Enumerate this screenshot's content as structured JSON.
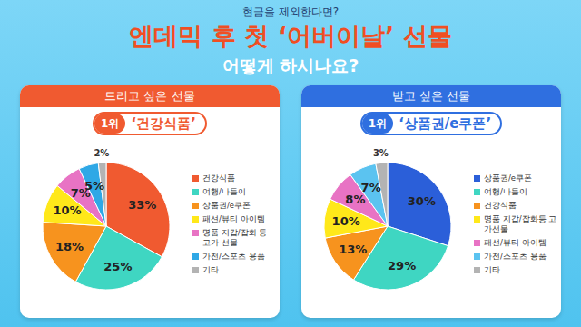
{
  "header": {
    "kicker": "현금을 제외한다면?",
    "title": "엔데믹 후 첫 ‘어버이날’ 선물",
    "subtitle": "어떻게 하시나요?"
  },
  "chart_data": [
    {
      "type": "pie",
      "title": "드리고 싶은 선물",
      "badge": [
        "1위",
        "‘건강식품’"
      ],
      "categories": [
        "건강식품",
        "여행/나들이",
        "상품권/e쿠폰",
        "패션/뷰티 아이템",
        "명품 지갑/잡화 등 고가 선물",
        "가전/스포츠 용품",
        "기타"
      ],
      "values": [
        33,
        25,
        18,
        10,
        7,
        5,
        2
      ],
      "value_labels": [
        "33%",
        "25%",
        "18%",
        "10%",
        "7%",
        "5%",
        "2%"
      ],
      "colors": [
        "#f05a30",
        "#3fd6c2",
        "#f7931e",
        "#ffe81a",
        "#e873c4",
        "#2fa8e6",
        "#b3b3b3"
      ],
      "data_labels": true,
      "legend": "right"
    },
    {
      "type": "pie",
      "title": "받고 싶은 선물",
      "badge": [
        "1위",
        "‘상품권/e쿠폰’"
      ],
      "categories": [
        "상품권/e쿠폰",
        "여행/나들이",
        "건강식품",
        "명품 지갑/잡화등 고가선물",
        "패션/뷰티 아이템",
        "가전/스포츠 용품",
        "기타"
      ],
      "values": [
        30,
        29,
        13,
        10,
        8,
        7,
        3
      ],
      "value_labels": [
        "30%",
        "29%",
        "13%",
        "10%",
        "8%",
        "7%",
        "3%"
      ],
      "colors": [
        "#2b5fd9",
        "#3fd6c2",
        "#f7931e",
        "#ffe81a",
        "#e873c4",
        "#5bc3f0",
        "#b3b3b3"
      ],
      "data_labels": true,
      "legend": "right"
    }
  ]
}
